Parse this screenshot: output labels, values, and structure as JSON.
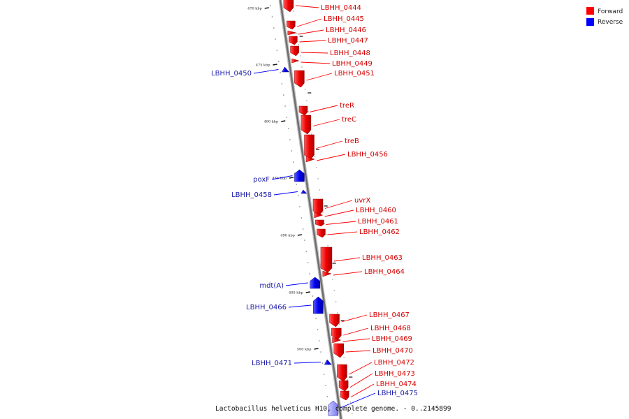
{
  "caption": "Lactobacillus helveticus H10, complete genome. - 0..2145899",
  "legend": [
    {
      "label": "Forward",
      "color": "#ff0000"
    },
    {
      "label": "Reverse",
      "color": "#0000ff"
    }
  ],
  "ticks": [
    "470 kbp",
    "475 kbp",
    "480 kbp",
    "485 kbp",
    "490 kbp",
    "495 kbp",
    "500 kbp"
  ],
  "genes": [
    {
      "name": "LBHH_0444",
      "strand": "forward"
    },
    {
      "name": "LBHH_0445",
      "strand": "forward"
    },
    {
      "name": "LBHH_0446",
      "strand": "forward"
    },
    {
      "name": "LBHH_0447",
      "strand": "forward"
    },
    {
      "name": "LBHH_0448",
      "strand": "forward"
    },
    {
      "name": "LBHH_0449",
      "strand": "forward"
    },
    {
      "name": "LBHH_0450",
      "strand": "reverse"
    },
    {
      "name": "LBHH_0451",
      "strand": "forward"
    },
    {
      "name": "treR",
      "strand": "forward"
    },
    {
      "name": "treC",
      "strand": "forward"
    },
    {
      "name": "treB",
      "strand": "forward"
    },
    {
      "name": "LBHH_0456",
      "strand": "forward"
    },
    {
      "name": "poxF",
      "strand": "reverse"
    },
    {
      "name": "LBHH_0458",
      "strand": "reverse"
    },
    {
      "name": "uvrX",
      "strand": "forward"
    },
    {
      "name": "LBHH_0460",
      "strand": "forward"
    },
    {
      "name": "LBHH_0461",
      "strand": "forward"
    },
    {
      "name": "LBHH_0462",
      "strand": "forward"
    },
    {
      "name": "LBHH_0463",
      "strand": "forward"
    },
    {
      "name": "LBHH_0464",
      "strand": "forward"
    },
    {
      "name": "mdt(A)",
      "strand": "reverse"
    },
    {
      "name": "LBHH_0466",
      "strand": "reverse"
    },
    {
      "name": "LBHH_0467",
      "strand": "forward"
    },
    {
      "name": "LBHH_0468",
      "strand": "forward"
    },
    {
      "name": "LBHH_0469",
      "strand": "forward"
    },
    {
      "name": "LBHH_0470",
      "strand": "forward"
    },
    {
      "name": "LBHH_0471",
      "strand": "reverse"
    },
    {
      "name": "LBHH_0472",
      "strand": "forward"
    },
    {
      "name": "LBHH_0473",
      "strand": "forward"
    },
    {
      "name": "LBHH_0474",
      "strand": "forward"
    },
    {
      "name": "LBHH_0475",
      "strand": "reverse"
    }
  ]
}
